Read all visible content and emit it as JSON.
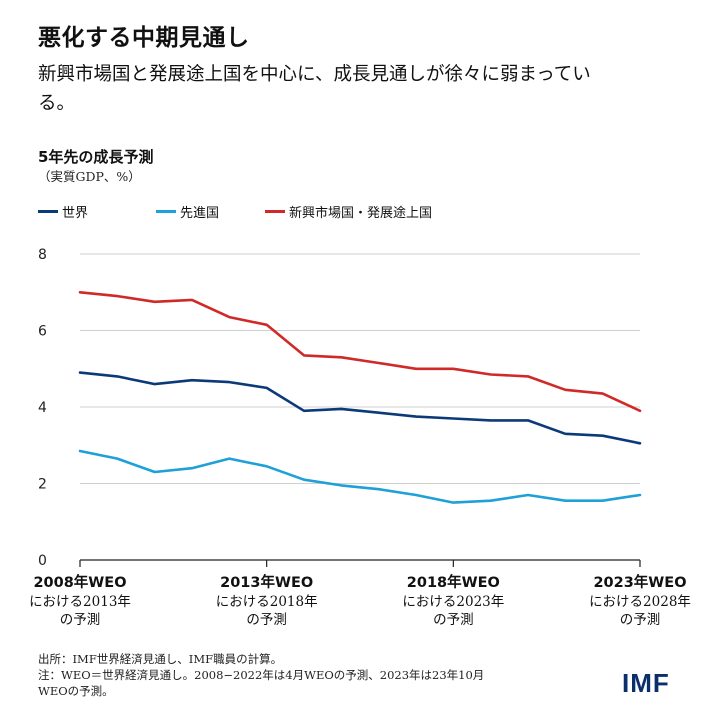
{
  "header": {
    "title": "悪化する中期見通し",
    "subtitle": "新興市場国と発展途上国を中心に、成長見通しが徐々に弱まっている。"
  },
  "colors": {
    "world": "#0b3a78",
    "advanced": "#1ea0d8",
    "emerging": "#cf2a27",
    "grid": "#cfcfcf",
    "axis": "#222222"
  },
  "chart_data": {
    "type": "line",
    "title": "5年先の成長予測",
    "ylabel": "（実質GDP、%）",
    "xlabel": "",
    "ylim": [
      0,
      8
    ],
    "yticks": [
      0,
      2,
      4,
      6,
      8
    ],
    "x": [
      0,
      1,
      2,
      3,
      4,
      5,
      6,
      7,
      8,
      9,
      10,
      11,
      12,
      13,
      14,
      15
    ],
    "xticks": [
      {
        "x": 0,
        "line1": "2008年WEO",
        "line2": "における2013年",
        "line3": "の予測"
      },
      {
        "x": 5,
        "line1": "2013年WEO",
        "line2": "における2018年",
        "line3": "の予測"
      },
      {
        "x": 10,
        "line1": "2018年WEO",
        "line2": "における2023年",
        "line3": "の予測"
      },
      {
        "x": 15,
        "line1": "2023年WEO",
        "line2": "における2028年",
        "line3": "の予測"
      }
    ],
    "series": [
      {
        "key": "world",
        "name": "世界",
        "values": [
          4.9,
          4.8,
          4.6,
          4.7,
          4.65,
          4.5,
          3.9,
          3.95,
          3.85,
          3.75,
          3.7,
          3.65,
          3.65,
          3.3,
          3.25,
          3.05
        ]
      },
      {
        "key": "advanced",
        "name": "先進国",
        "values": [
          2.85,
          2.65,
          2.3,
          2.4,
          2.65,
          2.45,
          2.1,
          1.95,
          1.85,
          1.7,
          1.5,
          1.55,
          1.7,
          1.55,
          1.55,
          1.7
        ]
      },
      {
        "key": "emerging",
        "name": "新興市場国・発展途上国",
        "values": [
          7.0,
          6.9,
          6.75,
          6.8,
          6.35,
          6.15,
          5.35,
          5.3,
          5.15,
          5.0,
          5.0,
          4.85,
          4.8,
          4.45,
          4.35,
          3.9
        ]
      }
    ],
    "legend_position": "top-left"
  },
  "footer": {
    "source": "出所：IMF世界経済見通し、IMF職員の計算。",
    "note1": "注：WEO＝世界経済見通し。2008−2022年は4月WEOの予測、2023年は23年10月",
    "note2": "WEOの予測。"
  },
  "logo": {
    "text": "IMF"
  }
}
